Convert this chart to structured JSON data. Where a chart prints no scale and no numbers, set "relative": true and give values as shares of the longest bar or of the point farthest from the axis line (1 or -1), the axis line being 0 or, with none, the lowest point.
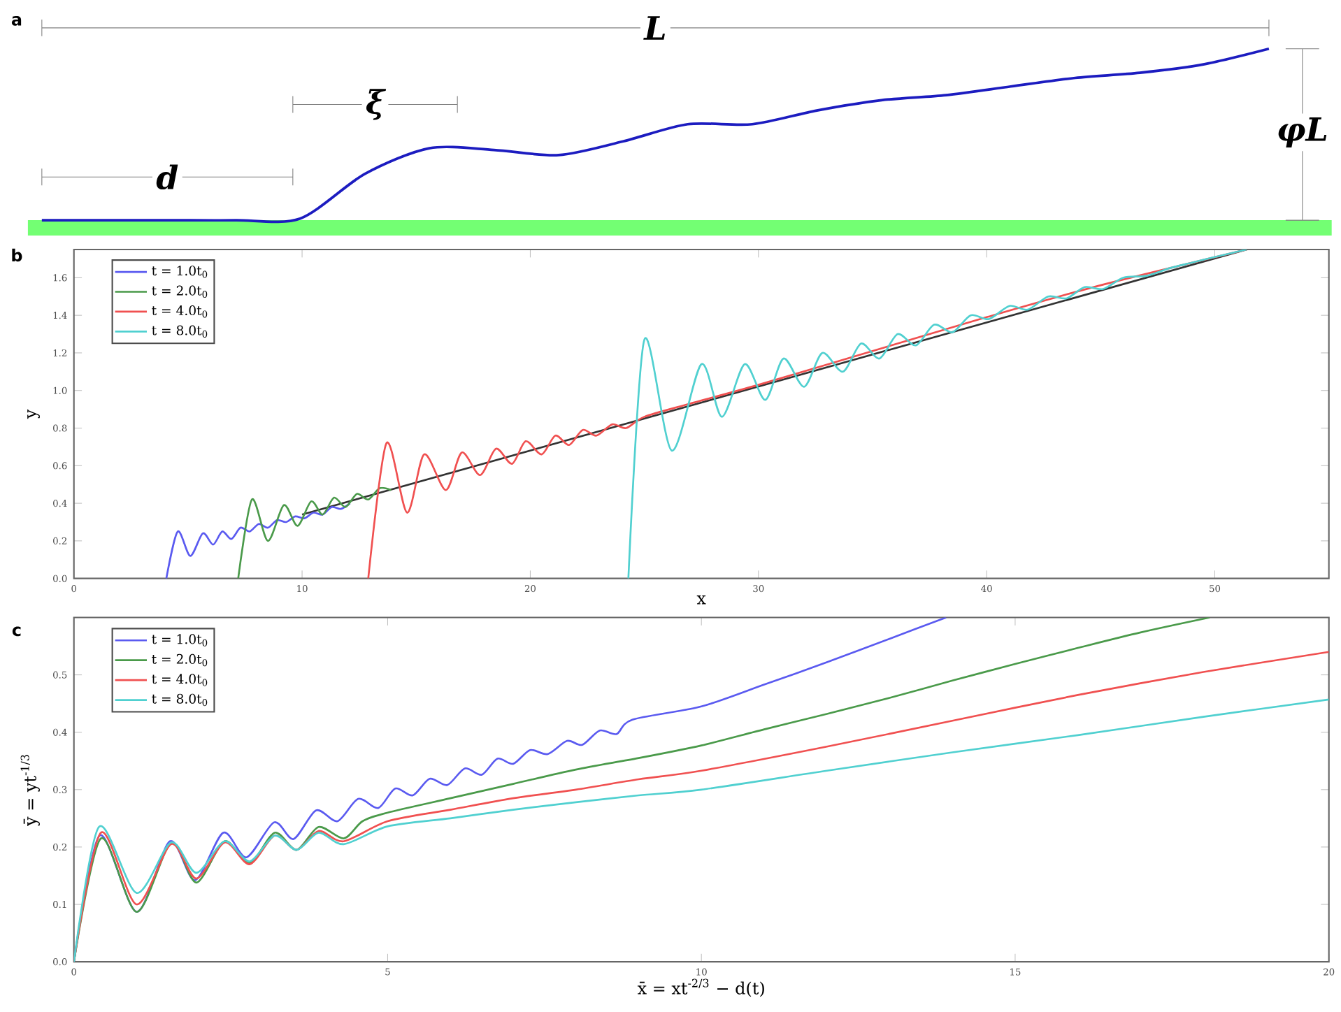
{
  "chart_data": [
    {
      "type": "line",
      "relative": true,
      "annotations": [
        "a",
        "L",
        "ξ",
        "d",
        "φL"
      ],
      "categories": [
        null,
        null,
        null,
        null,
        null,
        null,
        null,
        null,
        null,
        null,
        null,
        null,
        null,
        null,
        null,
        null,
        null,
        null,
        null,
        null
      ],
      "series": [
        {
          "color": "#1c1cc0",
          "values": [
            0,
            0,
            0,
            0,
            0.01,
            0.27,
            0.42,
            0.41,
            0.38,
            0.46,
            0.56,
            0.56,
            0.64,
            0.7,
            0.73,
            0.78,
            0.83,
            0.86,
            0.91,
            1
          ]
        }
      ]
    },
    {
      "type": "line",
      "annotations": [
        "b"
      ],
      "xlabel": "x",
      "ylabel": "y",
      "xlim": [
        0,
        55
      ],
      "ylim": [
        0,
        1.75
      ],
      "xticks": [
        0,
        10,
        20,
        30,
        40,
        50
      ],
      "yticks": [
        {
          "value": 0,
          "label": "0.0"
        },
        {
          "value": 0.2,
          "label": "0.2"
        },
        {
          "value": 0.4,
          "label": "0.4"
        },
        {
          "value": 0.6,
          "label": "0.6"
        },
        {
          "value": 0.8,
          "label": "0.8"
        },
        {
          "value": 1.0,
          "label": "1.0"
        },
        {
          "value": 1.2,
          "label": "1.2"
        },
        {
          "value": 1.4,
          "label": "1.4"
        },
        {
          "value": 1.6,
          "label": "1.6"
        }
      ],
      "legend": "top left",
      "series": [
        {
          "color": "#333333",
          "x": [
            10,
            51.4
          ],
          "values": [
            0.34,
            1.75
          ]
        },
        {
          "name": "t = 1.0t$_{0}$",
          "color": "#5a5af0",
          "x": [
            4.05,
            4.55,
            5.1,
            5.65,
            6.1,
            6.5,
            6.9,
            7.3,
            7.7,
            8.1,
            8.5,
            8.9,
            9.3,
            9.7,
            10.1,
            10.5,
            10.9,
            11.3,
            11.7,
            12.1
          ],
          "values": [
            0,
            0.25,
            0.12,
            0.24,
            0.18,
            0.25,
            0.21,
            0.27,
            0.25,
            0.29,
            0.27,
            0.31,
            0.3,
            0.33,
            0.32,
            0.35,
            0.34,
            0.38,
            0.37,
            0.4
          ]
        },
        {
          "name": "t = 2.0t$_{0}$",
          "color": "#4a9a4a",
          "x": [
            7.2,
            7.8,
            8.5,
            9.2,
            9.8,
            10.4,
            10.9,
            11.4,
            11.9,
            12.4,
            12.9,
            13.4,
            13.9
          ],
          "values": [
            0,
            0.42,
            0.2,
            0.39,
            0.28,
            0.41,
            0.34,
            0.43,
            0.38,
            0.45,
            0.42,
            0.48,
            0.47
          ]
        },
        {
          "name": "t = 4.0t$_{0}$",
          "color": "#f05050",
          "x": [
            12.9,
            13.7,
            14.6,
            15.35,
            16.3,
            17.0,
            17.8,
            18.5,
            19.2,
            19.8,
            20.5,
            21.1,
            21.7,
            22.3,
            22.9,
            23.6,
            24.2,
            25.0,
            27.0,
            30.0,
            35.0,
            40.0,
            45.0,
            51.4
          ],
          "values": [
            0,
            0.72,
            0.35,
            0.66,
            0.47,
            0.67,
            0.55,
            0.69,
            0.61,
            0.73,
            0.66,
            0.76,
            0.71,
            0.79,
            0.76,
            0.82,
            0.8,
            0.86,
            0.93,
            1.03,
            1.21,
            1.39,
            1.56,
            1.75
          ]
        },
        {
          "name": "t = 8.0t$_{0}$",
          "color": "#50d0d0",
          "x": [
            24.3,
            25.0,
            26.2,
            27.5,
            28.4,
            29.4,
            30.3,
            31.1,
            32.0,
            32.8,
            33.7,
            34.5,
            35.3,
            36.1,
            36.9,
            37.7,
            38.5,
            39.3,
            40.1,
            41.0,
            41.8,
            42.7,
            43.5,
            44.3,
            45.1,
            46.0,
            47.0,
            48.0,
            49.0,
            50.0,
            51.4
          ],
          "values": [
            0,
            1.27,
            0.68,
            1.14,
            0.86,
            1.14,
            0.95,
            1.17,
            1.02,
            1.2,
            1.1,
            1.25,
            1.17,
            1.3,
            1.24,
            1.35,
            1.31,
            1.4,
            1.38,
            1.45,
            1.43,
            1.5,
            1.49,
            1.55,
            1.54,
            1.6,
            1.61,
            1.65,
            1.68,
            1.71,
            1.75
          ]
        }
      ]
    },
    {
      "type": "line",
      "annotations": [
        "c"
      ],
      "xlabel": "x̄ = xt$^{-2/3}$ − d(t)",
      "ylabel": "ȳ = yt$^{-1/3}$",
      "xlim": [
        0,
        20
      ],
      "ylim": [
        0,
        0.6
      ],
      "xticks": [
        0,
        5,
        10,
        15,
        20
      ],
      "yticks": [
        {
          "value": 0,
          "label": "0.0"
        },
        {
          "value": 0.1,
          "label": "0.1"
        },
        {
          "value": 0.2,
          "label": "0.2"
        },
        {
          "value": 0.3,
          "label": "0.3"
        },
        {
          "value": 0.4,
          "label": "0.4"
        },
        {
          "value": 0.5,
          "label": "0.5"
        }
      ],
      "legend": "top left",
      "series": [
        {
          "name": "t = 1.0t$_{0}$",
          "color": "#5a5af0",
          "x": [
            0,
            0.41,
            1.0,
            1.53,
            1.93,
            2.38,
            2.75,
            3.19,
            3.5,
            3.86,
            4.2,
            4.53,
            4.85,
            5.12,
            5.4,
            5.67,
            5.95,
            6.23,
            6.5,
            6.75,
            7.0,
            7.27,
            7.55,
            7.86,
            8.1,
            8.38,
            8.65,
            8.9,
            10,
            11,
            12,
            13,
            13.9
          ],
          "values": [
            0,
            0.22,
            0.087,
            0.21,
            0.142,
            0.225,
            0.182,
            0.243,
            0.214,
            0.264,
            0.245,
            0.284,
            0.268,
            0.302,
            0.29,
            0.319,
            0.308,
            0.337,
            0.326,
            0.354,
            0.345,
            0.369,
            0.362,
            0.385,
            0.378,
            0.403,
            0.397,
            0.422,
            0.445,
            0.483,
            0.522,
            0.563,
            0.6
          ]
        },
        {
          "name": "t = 2.0t$_{0}$",
          "color": "#4a9a4a",
          "x": [
            0,
            0.43,
            1.0,
            1.55,
            1.95,
            2.4,
            2.8,
            3.2,
            3.55,
            3.9,
            4.3,
            4.6,
            5,
            6,
            7,
            8,
            9,
            10,
            11,
            12,
            13,
            14,
            15,
            16,
            17,
            18.1
          ],
          "values": [
            0,
            0.215,
            0.087,
            0.207,
            0.138,
            0.21,
            0.172,
            0.225,
            0.195,
            0.235,
            0.215,
            0.245,
            0.26,
            0.285,
            0.31,
            0.335,
            0.355,
            0.377,
            0.405,
            0.432,
            0.46,
            0.49,
            0.519,
            0.547,
            0.574,
            0.6
          ]
        },
        {
          "name": "t = 4.0t$_{0}$",
          "color": "#f05050",
          "x": [
            0,
            0.43,
            1.0,
            1.55,
            1.95,
            2.4,
            2.8,
            3.2,
            3.55,
            3.9,
            4.3,
            5,
            6,
            7,
            8,
            9,
            10,
            12,
            14,
            16,
            18,
            20
          ],
          "values": [
            0,
            0.225,
            0.1,
            0.205,
            0.145,
            0.208,
            0.17,
            0.22,
            0.195,
            0.228,
            0.21,
            0.245,
            0.265,
            0.285,
            0.3,
            0.318,
            0.333,
            0.375,
            0.42,
            0.465,
            0.505,
            0.54
          ]
        },
        {
          "name": "t = 8.0t$_{0}$",
          "color": "#50d0d0",
          "x": [
            0,
            0.4,
            1.0,
            1.55,
            1.95,
            2.4,
            2.8,
            3.2,
            3.55,
            3.9,
            4.3,
            5,
            6,
            7,
            8,
            9,
            10,
            12,
            14,
            16,
            18,
            20
          ],
          "values": [
            0,
            0.235,
            0.12,
            0.208,
            0.155,
            0.21,
            0.175,
            0.22,
            0.195,
            0.225,
            0.205,
            0.236,
            0.25,
            0.265,
            0.278,
            0.29,
            0.3,
            0.333,
            0.365,
            0.395,
            0.427,
            0.457
          ]
        }
      ]
    }
  ]
}
